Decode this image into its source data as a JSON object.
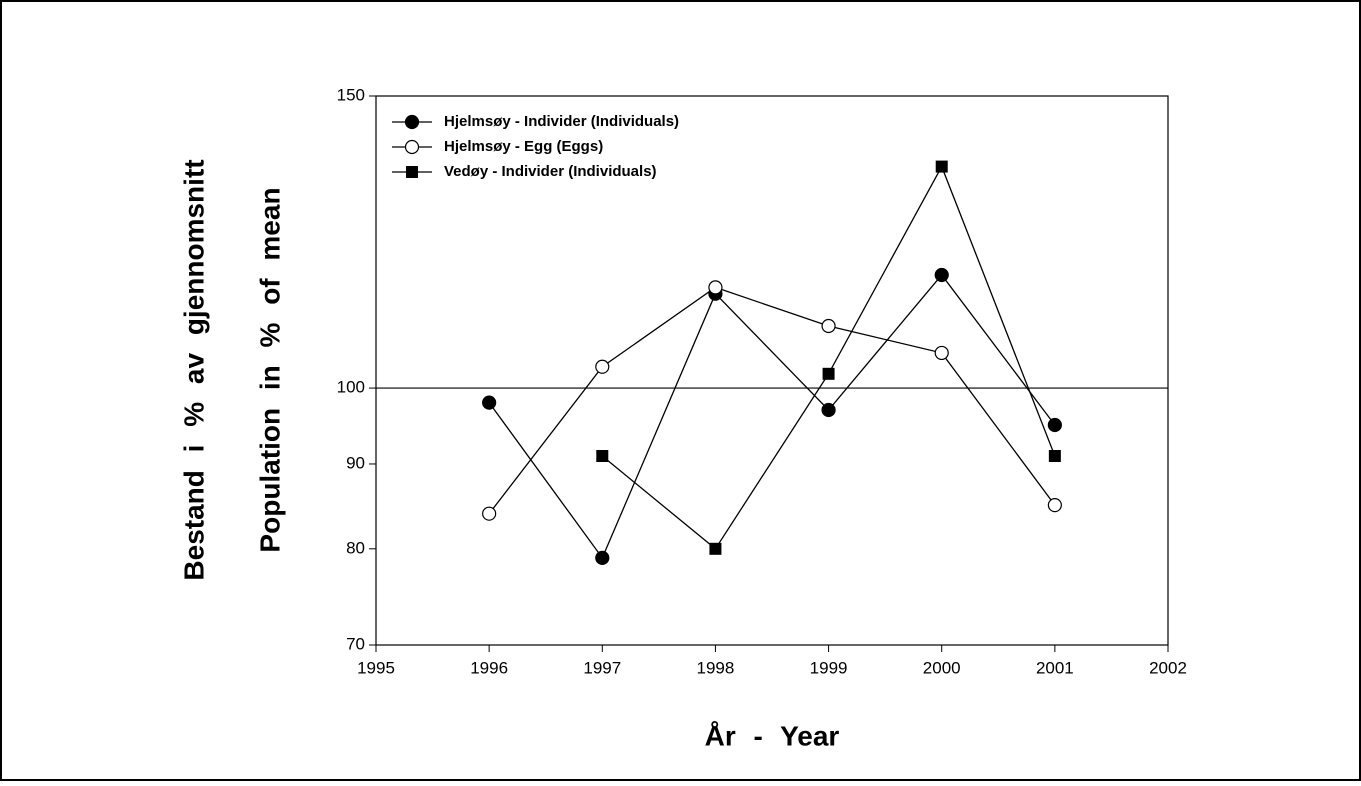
{
  "chart_data": {
    "type": "line",
    "xlabel": "År - Year",
    "ylabels": [
      "Bestand i % av gjennomsnitt",
      "Population in % of mean"
    ],
    "x": [
      1996,
      1997,
      1998,
      1999,
      2000,
      2001
    ],
    "series": [
      {
        "name": "Hjelmsøy - Individer (Individuals)",
        "color": "#000000",
        "marker": "circle",
        "values": [
          98,
          79,
          114,
          97,
          117,
          95
        ]
      },
      {
        "name": "Hjelmsøy - Egg (Eggs)",
        "color": "#000000",
        "marker": "circle-open",
        "values": [
          84,
          103,
          115,
          109,
          105,
          85
        ]
      },
      {
        "name": "Vedøy - Individer (Individuals)",
        "color": "#000000",
        "marker": "square",
        "values": [
          null,
          91,
          80,
          102,
          136,
          91
        ]
      }
    ],
    "xlim": [
      1995,
      2002
    ],
    "xticks": [
      1995,
      1996,
      1997,
      1998,
      1999,
      2000,
      2001,
      2002
    ],
    "ylim": [
      70,
      150
    ],
    "yticks": [
      70,
      80,
      90,
      100,
      150
    ],
    "yscale": "log",
    "hline": 100,
    "legend": "upper-left"
  }
}
